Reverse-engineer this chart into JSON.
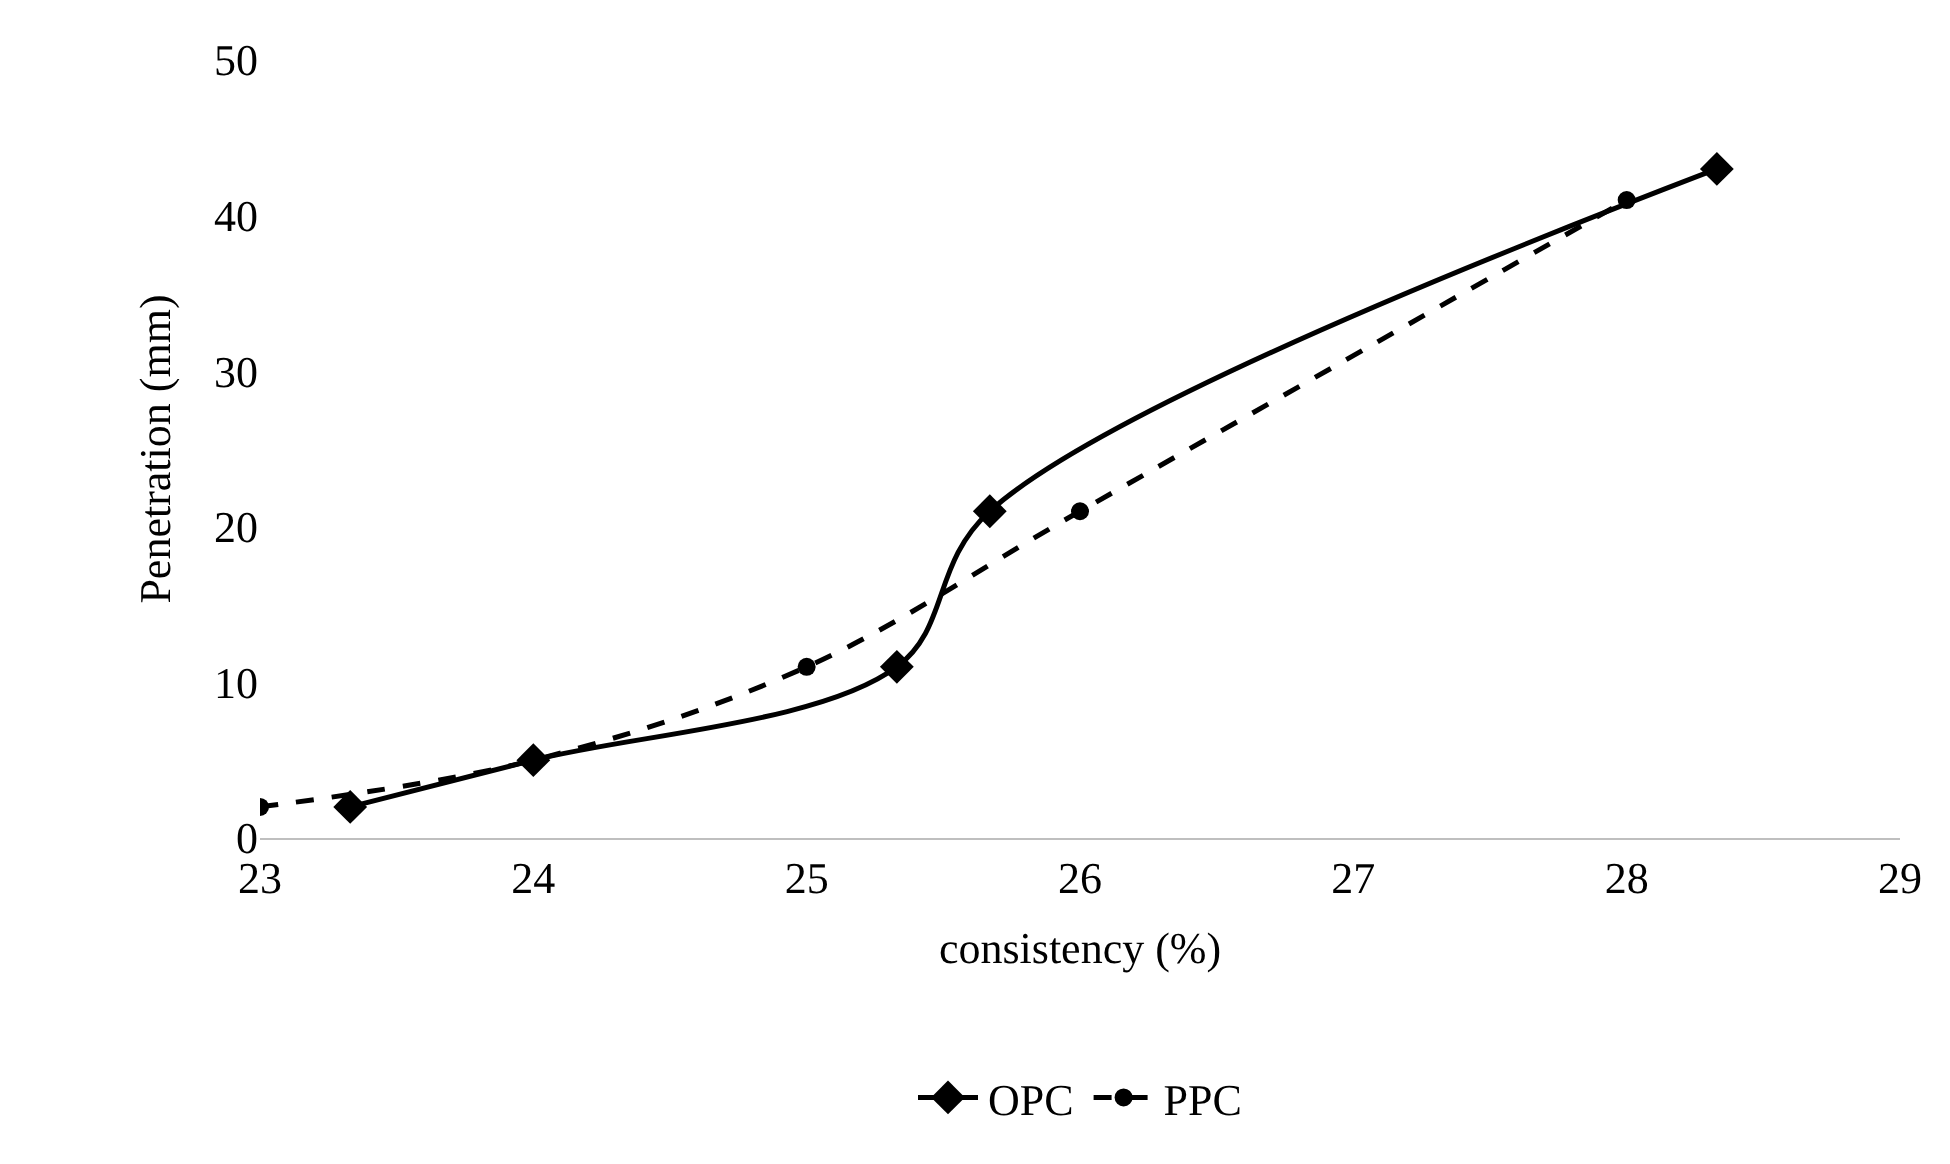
{
  "chart_data": {
    "type": "line",
    "xlabel": "consistency (%)",
    "ylabel": "Penetration (mm)",
    "xlim": [
      23,
      29
    ],
    "xticks": [
      23,
      24,
      25,
      26,
      27,
      28,
      29
    ],
    "ylim": [
      0,
      50
    ],
    "yticks": [
      0,
      10,
      20,
      30,
      40,
      50
    ],
    "grid": false,
    "legend": "bottom",
    "series": [
      {
        "name": "OPC",
        "color": "#000000",
        "marker": "diamond",
        "line_style": "solid",
        "x": [
          23.33,
          24,
          25.33,
          25.67,
          28.33
        ],
        "values": [
          2,
          5,
          11,
          21,
          43
        ]
      },
      {
        "name": "PPC",
        "color": "#000000",
        "marker": "circle",
        "line_style": "dashed",
        "x": [
          23,
          24,
          25,
          26,
          28
        ],
        "values": [
          2,
          5,
          11,
          21,
          41
        ]
      }
    ]
  }
}
